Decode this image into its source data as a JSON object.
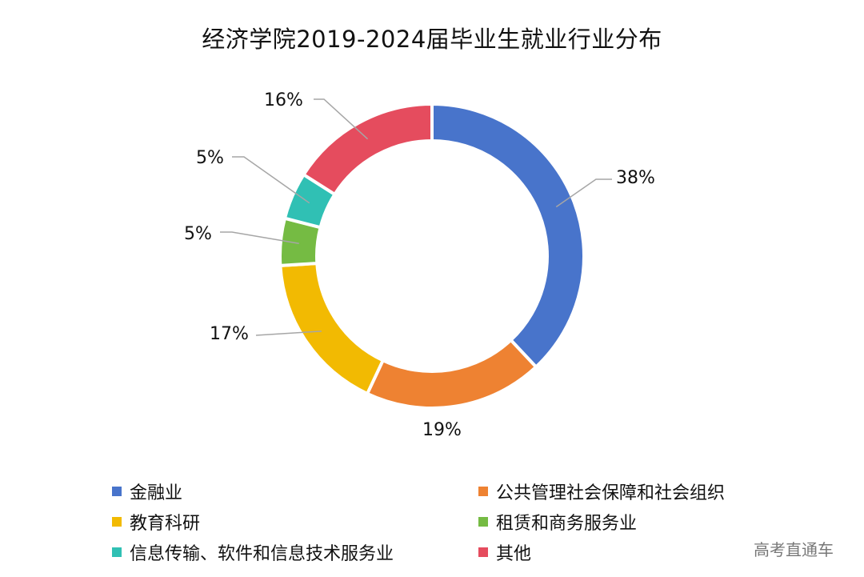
{
  "title": "经济学院2019-2024届毕业生就业行业分布",
  "watermark": "高考直通车",
  "chart_data": {
    "type": "pie",
    "donut": true,
    "title": "经济学院2019-2024届毕业生就业行业分布",
    "categories": [
      "金融业",
      "公共管理社会保障和社会组织",
      "教育科研",
      "租赁和商务服务业",
      "信息传输、软件和信息技术服务业",
      "其他"
    ],
    "values": [
      38,
      19,
      17,
      5,
      5,
      16
    ],
    "labels": [
      "38%",
      "19%",
      "17%",
      "5%",
      "5%",
      "16%"
    ],
    "colors": [
      "#4874CB",
      "#EE8232",
      "#F2BA02",
      "#75BB43",
      "#30C0B4",
      "#E54C5E"
    ],
    "legend_position": "bottom",
    "start_angle": "12 o'clock, clockwise"
  },
  "legend": [
    {
      "label": "金融业",
      "color": "#4874CB"
    },
    {
      "label": "公共管理社会保障和社会组织",
      "color": "#EE8232"
    },
    {
      "label": "教育科研",
      "color": "#F2BA02"
    },
    {
      "label": "租赁和商务服务业",
      "color": "#75BB43"
    },
    {
      "label": "信息传输、软件和信息技术服务业",
      "color": "#30C0B4"
    },
    {
      "label": "其他",
      "color": "#E54C5E"
    }
  ]
}
